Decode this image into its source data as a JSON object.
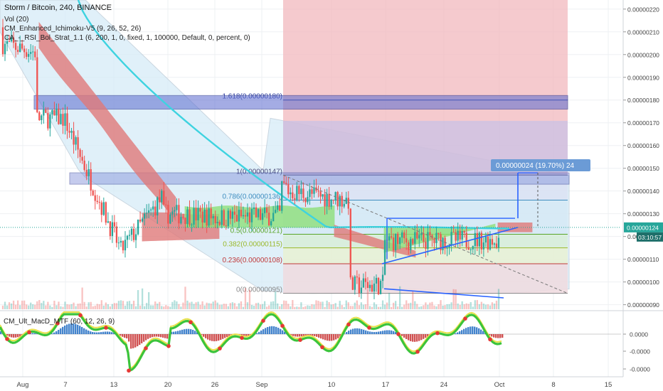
{
  "header": {
    "title": "Storm / Bitcoin, 240, BINANCE",
    "indicators": [
      "Vol (20)",
      "CM_Enhanced_Ichimoku-V5 (9, 26, 52, 26)",
      "CA_-_RSI_Bol_Strat_1.1 (6, 200, 1, 0, fixed, 1, 100000, Default, 0, percent, 0)"
    ]
  },
  "macd_panel": {
    "title": "CM_Ult_MacD_MTF (60, 12, 26, 9)"
  },
  "colors": {
    "up_candle": "#26a69a",
    "down_candle": "#ef5350",
    "cloud_green": "#8ee07a",
    "cloud_red": "#e07a7a",
    "cyan_ma": "#3ed3e0",
    "fib_box": "#2a3fa0",
    "measure": "#2962ff",
    "price_label_bg": "#26a69a",
    "timer_bg": "#1e6f6a"
  },
  "chart_data": {
    "type": "candlestick",
    "symbol": "Storm / Bitcoin",
    "interval": "240",
    "exchange": "BINANCE",
    "x_ticks": [
      "Aug",
      "7",
      "13",
      "20",
      "26",
      "Sep",
      "10",
      "17",
      "24",
      "Oct",
      "8",
      "15"
    ],
    "y_ticks": [
      "0.00000220",
      "0.00000210",
      "0.00000200",
      "0.00000190",
      "0.00000180",
      "0.00000170",
      "0.00000160",
      "0.00000150",
      "0.00000140",
      "0.00000130",
      "0.00000120",
      "0.00000110",
      "0.00000100",
      "0.00000090"
    ],
    "ylim": [
      8.8e-07,
      2.24e-06
    ],
    "fib_levels": [
      {
        "label": "1.618(0.00000180)",
        "value": 1.8e-06
      },
      {
        "label": "1(0.00000147)",
        "value": 1.47e-06
      },
      {
        "label": "0.786(0.00000136)",
        "value": 1.36e-06
      },
      {
        "label": "0.5(0.00000121)",
        "value": 1.21e-06
      },
      {
        "label": "0.382(0.00000115)",
        "value": 1.15e-06
      },
      {
        "label": "0.236(0.00000108)",
        "value": 1.08e-06
      },
      {
        "label": "0(0.00000095)",
        "value": 9.5e-07
      }
    ],
    "last_price": {
      "label": "0.00000124",
      "value": 1.24e-06
    },
    "countdown": "03:10:57",
    "measure_label": "0.00000024 (19.70%) 24",
    "macd_y_ticks": [
      "0.0000",
      "-0.0000",
      "-0.0000"
    ]
  }
}
